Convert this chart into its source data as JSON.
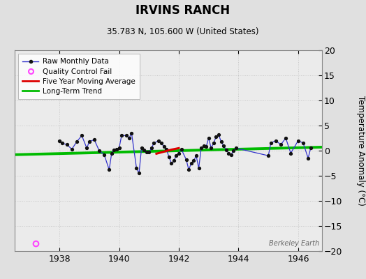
{
  "title": "IRVINS RANCH",
  "subtitle": "35.783 N, 105.600 W (United States)",
  "ylabel": "Temperature Anomaly (°C)",
  "watermark": "Berkeley Earth",
  "xlim": [
    1936.5,
    1946.8
  ],
  "ylim": [
    -20,
    20
  ],
  "yticks": [
    -20,
    -15,
    -10,
    -5,
    0,
    5,
    10,
    15,
    20
  ],
  "xticks": [
    1938,
    1940,
    1942,
    1944,
    1946
  ],
  "bg_color": "#e0e0e0",
  "plot_bg_color": "#ebebeb",
  "raw_data_x": [
    1938.0,
    1938.083,
    1938.25,
    1938.417,
    1938.583,
    1938.75,
    1938.917,
    1939.0,
    1939.167,
    1939.333,
    1939.5,
    1939.667,
    1939.75,
    1939.833,
    1939.917,
    1940.0,
    1940.083,
    1940.25,
    1940.333,
    1940.417,
    1940.583,
    1940.667,
    1940.75,
    1940.833,
    1940.917,
    1941.0,
    1941.083,
    1941.167,
    1941.333,
    1941.417,
    1941.5,
    1941.583,
    1941.667,
    1941.75,
    1941.833,
    1941.917,
    1942.0,
    1942.083,
    1942.25,
    1942.333,
    1942.417,
    1942.5,
    1942.583,
    1942.667,
    1942.75,
    1942.833,
    1942.917,
    1943.0,
    1943.083,
    1943.167,
    1943.25,
    1943.333,
    1943.417,
    1943.5,
    1943.583,
    1943.667,
    1943.75,
    1943.833,
    1943.917,
    1945.0,
    1945.083,
    1945.25,
    1945.417,
    1945.583,
    1945.75,
    1946.0,
    1946.167,
    1946.333,
    1946.417
  ],
  "raw_data_y": [
    2.0,
    1.5,
    1.2,
    0.3,
    1.8,
    3.0,
    0.5,
    1.8,
    2.2,
    0.0,
    -0.8,
    -3.8,
    -0.5,
    0.2,
    0.3,
    0.5,
    3.0,
    3.0,
    2.5,
    3.5,
    -3.5,
    -4.5,
    0.5,
    0.2,
    -0.3,
    -0.3,
    0.5,
    1.5,
    2.0,
    1.5,
    0.8,
    0.3,
    -1.2,
    -2.5,
    -2.0,
    -1.0,
    -0.5,
    0.3,
    -1.8,
    -3.8,
    -2.5,
    -2.0,
    -1.0,
    -3.5,
    0.5,
    1.0,
    0.8,
    2.5,
    0.5,
    1.5,
    2.8,
    3.2,
    1.8,
    1.0,
    0.2,
    -0.5,
    -0.8,
    0.0,
    0.5,
    -1.0,
    1.5,
    2.0,
    1.2,
    2.5,
    -0.5,
    2.0,
    1.5,
    -1.5,
    0.5
  ],
  "moving_avg_x": [
    1941.25,
    1941.5,
    1941.75,
    1941.917,
    1942.0
  ],
  "moving_avg_y": [
    -0.6,
    -0.2,
    0.2,
    0.4,
    0.5
  ],
  "trend_x": [
    1936.5,
    1946.8
  ],
  "trend_y": [
    -0.8,
    0.7
  ],
  "qc_fail_x": [
    1937.2
  ],
  "qc_fail_y": [
    -18.5
  ],
  "line_color": "#3333cc",
  "marker_color": "#111111",
  "moving_avg_color": "#dd0000",
  "trend_color": "#00bb00",
  "qc_color": "#ff44ff",
  "grid_color": "#c8c8c8",
  "spine_color": "#888888"
}
